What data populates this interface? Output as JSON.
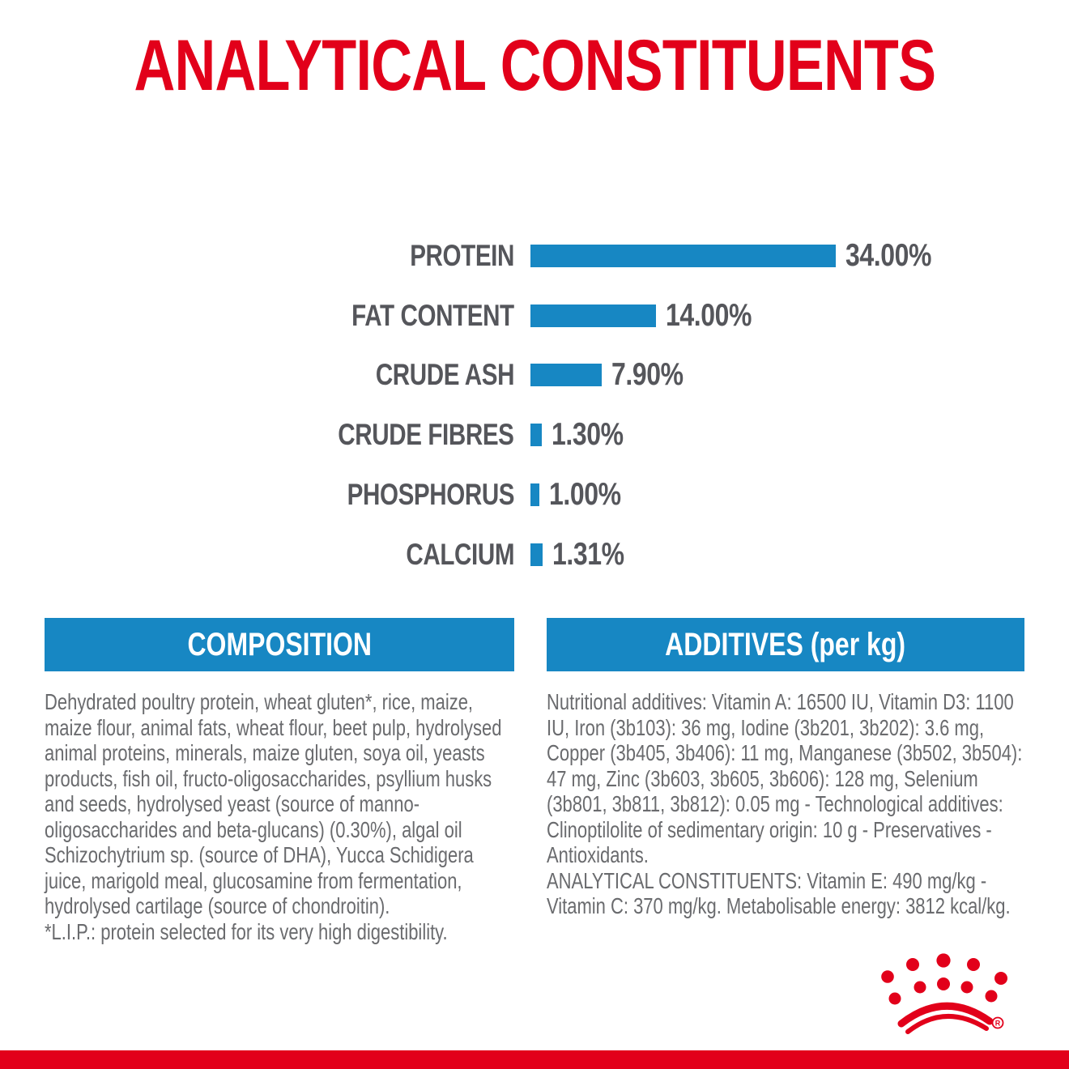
{
  "title": "ANALYTICAL CONSTITUENTS",
  "colors": {
    "red": "#E2001A",
    "blue": "#1787C3",
    "label_gray": "#55565B",
    "body_gray": "#6A6B6E"
  },
  "chart_data": {
    "type": "bar",
    "orientation": "horizontal",
    "title": "ANALYTICAL CONSTITUENTS",
    "categories": [
      "PROTEIN",
      "FAT CONTENT",
      "CRUDE ASH",
      "CRUDE FIBRES",
      "PHOSPHORUS",
      "CALCIUM"
    ],
    "values": [
      34.0,
      14.0,
      7.9,
      1.3,
      1.0,
      1.31
    ],
    "value_labels": [
      "34.00%",
      "14.00%",
      "7.90%",
      "1.30%",
      "1.00%",
      "1.31%"
    ],
    "unit": "%",
    "xlim": [
      0,
      34
    ],
    "bar_color": "#1787C3",
    "grid": false,
    "legend": false
  },
  "composition": {
    "header": "COMPOSITION",
    "body": "Dehydrated poultry protein, wheat gluten*, rice, maize, maize flour, animal fats, wheat flour, beet pulp, hydrolysed animal proteins, minerals, maize gluten, soya oil, yeasts products, fish oil, fructo-oligosaccharides, psyllium husks and seeds, hydrolysed yeast (source of manno-oligosaccharides and beta-glucans) (0.30%), algal oil Schizochytrium sp. (source of DHA), Yucca Schidigera juice, marigold meal, glucosamine from fermentation, hydrolysed cartilage (source of chondroitin).",
    "footnote": "*L.I.P.: protein selected for its very high digestibility."
  },
  "additives": {
    "header": "ADDITIVES (per kg)",
    "body": "Nutritional additives: Vitamin A: 16500 IU, Vitamin D3: 1100 IU, Iron (3b103): 36 mg, Iodine (3b201, 3b202): 3.6 mg, Copper (3b405, 3b406): 11 mg, Manganese (3b502, 3b504): 47 mg, Zinc (3b603, 3b605, 3b606): 128 mg, Selenium (3b801, 3b811, 3b812): 0.05 mg - Technological additives: Clinoptilolite of sedimentary origin: 10 g - Preservatives - Antioxidants.",
    "analytical": "ANALYTICAL CONSTITUENTS: Vitamin E: 490 mg/kg - Vitamin C: 370 mg/kg. Metabolisable energy: 3812 kcal/kg."
  },
  "logo": {
    "name": "royal-canin-crown",
    "registered": "®"
  }
}
